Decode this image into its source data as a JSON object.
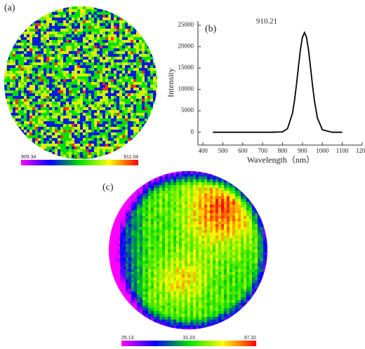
{
  "chart_data": [
    {
      "type": "wafer-map",
      "label": "(a)",
      "colorbar": {
        "lim": [
          909.34,
          911.04
        ],
        "ticks": [
          909.34,
          910.19,
          911.04
        ]
      }
    },
    {
      "type": "line",
      "label": "(b)",
      "x_label": "Wavelength（nm）",
      "y_label": "Intensity",
      "annotation": "910.21",
      "x": [
        450,
        500,
        550,
        600,
        650,
        700,
        750,
        800,
        825,
        850,
        860,
        870,
        880,
        890,
        900,
        910,
        920,
        930,
        940,
        950,
        960,
        975,
        1000,
        1050,
        1100
      ],
      "series": [
        {
          "name": "Intensity",
          "color": "#000000",
          "values": [
            0,
            0,
            0,
            0,
            0,
            0,
            0,
            90,
            840,
            4460,
            7390,
            11180,
            15420,
            19390,
            22250,
            23300,
            22250,
            19390,
            15420,
            11180,
            7390,
            3350,
            570,
            0,
            0
          ]
        }
      ],
      "xlim": [
        375,
        1200
      ],
      "xticks": [
        400,
        500,
        600,
        700,
        800,
        900,
        1000,
        1100,
        1200
      ],
      "ylim": [
        -3000,
        26000
      ],
      "yticks": [
        0,
        5000,
        10000,
        15000,
        20000,
        25000
      ]
    },
    {
      "type": "wafer-map",
      "label": "(c)",
      "colorbar": {
        "lim": [
          25.13,
          37.32
        ],
        "ticks": [
          25.13,
          31.23,
          37.32
        ]
      }
    }
  ]
}
